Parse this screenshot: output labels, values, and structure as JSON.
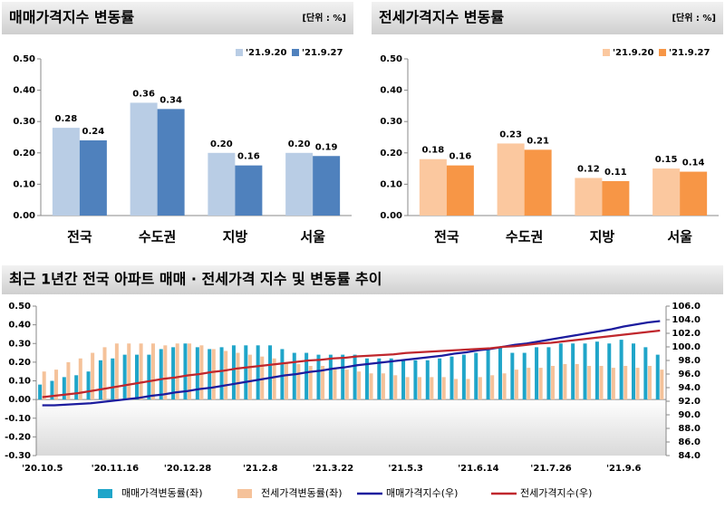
{
  "chart_data": [
    {
      "type": "bar",
      "title": "매매가격지수 변동률",
      "unit": "[단위 : %]",
      "categories": [
        "전국",
        "수도권",
        "지방",
        "서울"
      ],
      "series": [
        {
          "name": "'21.9.20",
          "color": "#b9cde5",
          "values": [
            0.28,
            0.36,
            0.2,
            0.2
          ],
          "value_labels": [
            "0.28",
            "0.36",
            "0.20",
            "0.20"
          ]
        },
        {
          "name": "'21.9.27",
          "color": "#4f81bd",
          "values": [
            0.24,
            0.34,
            0.16,
            0.19
          ],
          "value_labels": [
            "0.24",
            "0.34",
            "0.16",
            "0.19"
          ]
        }
      ],
      "ylim": [
        0,
        0.5
      ],
      "yticks": [
        {
          "value": 0,
          "label": "0.00"
        },
        {
          "value": 0.1,
          "label": "0.10"
        },
        {
          "value": 0.2,
          "label": "0.20"
        },
        {
          "value": 0.3,
          "label": "0.30"
        },
        {
          "value": 0.4,
          "label": "0.40"
        },
        {
          "value": 0.5,
          "label": "0.50"
        }
      ]
    },
    {
      "type": "bar",
      "title": "전세가격지수 변동률",
      "unit": "[단위 : %]",
      "categories": [
        "전국",
        "수도권",
        "지방",
        "서울"
      ],
      "series": [
        {
          "name": "'21.9.20",
          "color": "#fbc89f",
          "values": [
            0.18,
            0.23,
            0.12,
            0.15
          ],
          "value_labels": [
            "0.18",
            "0.23",
            "0.12",
            "0.15"
          ]
        },
        {
          "name": "'21.9.27",
          "color": "#f79646",
          "values": [
            0.16,
            0.21,
            0.11,
            0.14
          ],
          "value_labels": [
            "0.16",
            "0.21",
            "0.11",
            "0.14"
          ]
        }
      ],
      "ylim": [
        0,
        0.5
      ],
      "yticks": [
        {
          "value": 0,
          "label": "0.00"
        },
        {
          "value": 0.1,
          "label": "0.10"
        },
        {
          "value": 0.2,
          "label": "0.20"
        },
        {
          "value": 0.3,
          "label": "0.30"
        },
        {
          "value": 0.4,
          "label": "0.40"
        },
        {
          "value": 0.5,
          "label": "0.50"
        }
      ]
    },
    {
      "type": "combo",
      "title": "최근 1년간 전국 아파트 매매 · 전세가격 지수 및 변동률 추이",
      "categories": [
        "'20.10.5",
        null,
        null,
        null,
        null,
        null,
        "'20.11.16",
        null,
        null,
        null,
        null,
        null,
        "'20.12.28",
        null,
        null,
        null,
        null,
        null,
        "'21.2.8",
        null,
        null,
        null,
        null,
        null,
        "'21.3.22",
        null,
        null,
        null,
        null,
        null,
        "'21.5.3",
        null,
        null,
        null,
        null,
        null,
        "'21.6.14",
        null,
        null,
        null,
        null,
        null,
        "'21.7.26",
        null,
        null,
        null,
        null,
        null,
        "'21.9.6",
        null,
        null,
        null
      ],
      "series": [
        {
          "name": "매매가격변동률(좌)",
          "type": "bar",
          "color": "#1fa5c9",
          "values": [
            0.08,
            0.1,
            0.12,
            0.13,
            0.15,
            0.21,
            0.22,
            0.24,
            0.24,
            0.24,
            0.27,
            0.28,
            0.3,
            0.28,
            0.27,
            0.28,
            0.29,
            0.29,
            0.29,
            0.29,
            0.27,
            0.25,
            0.25,
            0.24,
            0.24,
            0.24,
            0.24,
            0.22,
            0.22,
            0.22,
            0.21,
            0.21,
            0.21,
            0.22,
            0.23,
            0.24,
            0.25,
            0.27,
            0.28,
            0.25,
            0.25,
            0.28,
            0.28,
            0.3,
            0.3,
            0.3,
            0.31,
            0.3,
            0.32,
            0.3,
            0.28,
            0.24
          ]
        },
        {
          "name": "전세가격변동률(좌)",
          "type": "bar",
          "color": "#f5c29a",
          "values": [
            0.15,
            0.16,
            0.2,
            0.22,
            0.25,
            0.28,
            0.3,
            0.3,
            0.3,
            0.3,
            0.29,
            0.3,
            0.3,
            0.29,
            0.27,
            0.26,
            0.25,
            0.24,
            0.23,
            0.22,
            0.2,
            0.19,
            0.18,
            0.18,
            0.17,
            0.16,
            0.15,
            0.14,
            0.14,
            0.13,
            0.12,
            0.12,
            0.12,
            0.12,
            0.11,
            0.11,
            0.12,
            0.13,
            0.14,
            0.16,
            0.17,
            0.17,
            0.18,
            0.19,
            0.19,
            0.18,
            0.18,
            0.17,
            0.18,
            0.17,
            0.18,
            0.16
          ]
        },
        {
          "name": "매매가격지수(우)",
          "type": "line",
          "axis": "y2",
          "color": "#1c1c9e",
          "values": [
            91.4,
            91.4,
            91.5,
            91.6,
            91.7,
            91.9,
            92.1,
            92.3,
            92.5,
            92.8,
            93.0,
            93.3,
            93.5,
            93.8,
            94.0,
            94.3,
            94.6,
            94.9,
            95.2,
            95.5,
            95.8,
            96.0,
            96.3,
            96.5,
            96.8,
            97.0,
            97.3,
            97.5,
            97.7,
            97.9,
            98.1,
            98.3,
            98.5,
            98.7,
            99.0,
            99.2,
            99.5,
            99.7,
            100.0,
            100.3,
            100.5,
            100.8,
            101.1,
            101.4,
            101.7,
            102.0,
            102.3,
            102.6,
            103.0,
            103.3,
            103.6,
            103.8
          ]
        },
        {
          "name": "전세가격지수(우)",
          "type": "line",
          "axis": "y2",
          "color": "#c0272d",
          "values": [
            92.6,
            92.8,
            93.0,
            93.2,
            93.5,
            93.8,
            94.1,
            94.4,
            94.7,
            95.0,
            95.3,
            95.5,
            95.8,
            96.0,
            96.3,
            96.5,
            96.8,
            97.0,
            97.2,
            97.4,
            97.6,
            97.8,
            98.0,
            98.1,
            98.3,
            98.4,
            98.6,
            98.7,
            98.8,
            98.9,
            99.1,
            99.2,
            99.3,
            99.4,
            99.5,
            99.6,
            99.7,
            99.8,
            100.0,
            100.1,
            100.3,
            100.5,
            100.6,
            100.8,
            101.0,
            101.2,
            101.4,
            101.6,
            101.8,
            102.0,
            102.2,
            102.4
          ]
        }
      ],
      "ylim": [
        -0.3,
        0.5
      ],
      "yticks": [
        {
          "value": -0.3,
          "label": "-0.30"
        },
        {
          "value": -0.2,
          "label": "-0.20"
        },
        {
          "value": -0.1,
          "label": "-0.10"
        },
        {
          "value": 0,
          "label": "0.00"
        },
        {
          "value": 0.1,
          "label": "0.10"
        },
        {
          "value": 0.2,
          "label": "0.20"
        },
        {
          "value": 0.3,
          "label": "0.30"
        },
        {
          "value": 0.4,
          "label": "0.40"
        },
        {
          "value": 0.5,
          "label": "0.50"
        }
      ],
      "y2lim": [
        84,
        106
      ],
      "y2ticks": [
        {
          "value": 84,
          "label": "84.0"
        },
        {
          "value": 86,
          "label": "86.0"
        },
        {
          "value": 88,
          "label": "88.0"
        },
        {
          "value": 90,
          "label": "90.0"
        },
        {
          "value": 92,
          "label": "92.0"
        },
        {
          "value": 94,
          "label": "94.0"
        },
        {
          "value": 96,
          "label": "96.0"
        },
        {
          "value": 98,
          "label": "98.0"
        },
        {
          "value": 100,
          "label": "100.0"
        },
        {
          "value": 102,
          "label": "102.0"
        },
        {
          "value": 104,
          "label": "104.0"
        },
        {
          "value": 106,
          "label": "106.0"
        }
      ]
    }
  ]
}
